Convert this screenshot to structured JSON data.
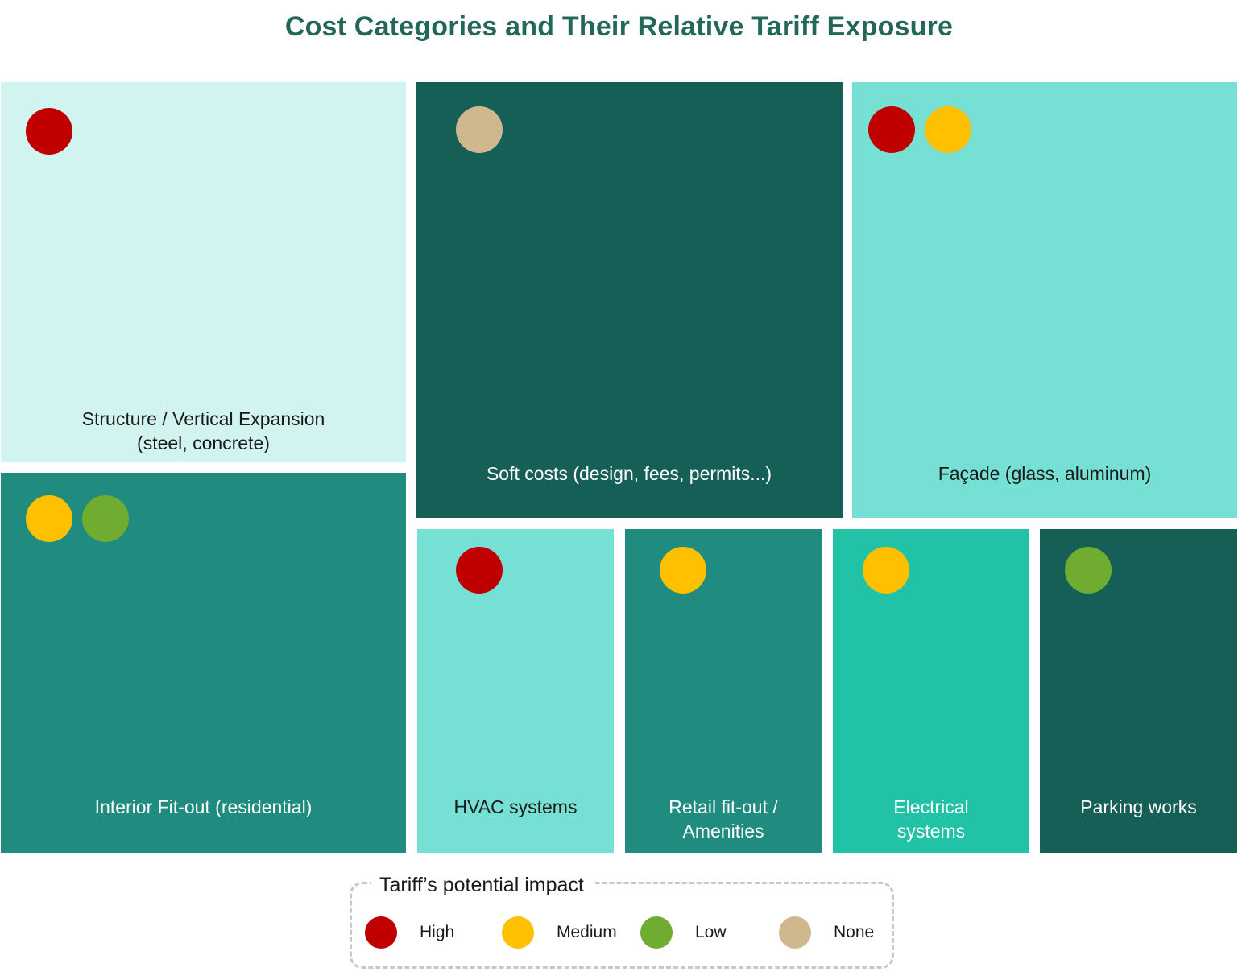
{
  "title": "Cost Categories and Their Relative Tariff Exposure",
  "impact_colors": {
    "High": "#C00000",
    "Medium": "#FFC000",
    "Low": "#6FAC2F",
    "None": "#D0B88E"
  },
  "tiles": [
    {
      "id": "structure",
      "label": "Structure / Vertical Expansion\n(steel, concrete)",
      "impacts": [
        "High"
      ],
      "bg": "#D2F4F0",
      "text_color": "#1a1a1a"
    },
    {
      "id": "soft",
      "label": "Soft costs (design, fees, permits...)",
      "impacts": [
        "None"
      ],
      "bg": "#165F57",
      "text_color": "#ffffff"
    },
    {
      "id": "facade",
      "label": "Façade (glass, aluminum)",
      "impacts": [
        "High",
        "Medium"
      ],
      "bg": "#76E0D4",
      "text_color": "#1a1a1a"
    },
    {
      "id": "interior",
      "label": "Interior Fit-out (residential)",
      "impacts": [
        "Medium",
        "Low"
      ],
      "bg": "#208C7F",
      "text_color": "#ffffff"
    },
    {
      "id": "hvac",
      "label": "HVAC systems",
      "impacts": [
        "High"
      ],
      "bg": "#76E0D4",
      "text_color": "#1a1a1a"
    },
    {
      "id": "retail",
      "label": "Retail fit-out /\nAmenities",
      "impacts": [
        "Medium"
      ],
      "bg": "#208C7F",
      "text_color": "#ffffff"
    },
    {
      "id": "electric",
      "label": "Electrical\nsystems",
      "impacts": [
        "Medium"
      ],
      "bg": "#21C2A6",
      "text_color": "#ffffff"
    },
    {
      "id": "parking",
      "label": "Parking works",
      "impacts": [
        "Low"
      ],
      "bg": "#165F57",
      "text_color": "#ffffff"
    }
  ],
  "legend": {
    "title": "Tariff’s potential impact",
    "items": [
      {
        "id": "high",
        "label": "High",
        "level": "High"
      },
      {
        "id": "medium",
        "label": "Medium",
        "level": "Medium"
      },
      {
        "id": "low",
        "label": "Low",
        "level": "Low"
      },
      {
        "id": "none",
        "label": "None",
        "level": "None"
      }
    ]
  }
}
